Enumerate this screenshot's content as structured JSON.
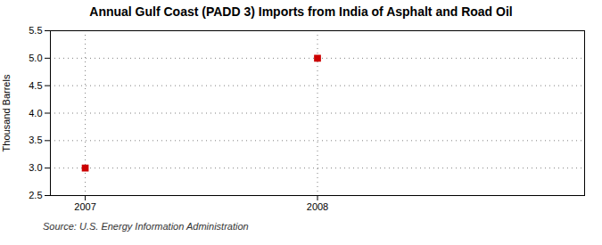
{
  "chart_data": {
    "type": "scatter",
    "title": "Annual Gulf Coast (PADD 3) Imports from India of Asphalt and Road Oil",
    "ylabel": "Thousand Barrels",
    "annotations": [
      "Source: U.S. Energy Information Administration"
    ],
    "x": [
      2007,
      2008
    ],
    "values": [
      3.0,
      5.0
    ],
    "color": "#cc0000",
    "marker": "square",
    "xlim": [
      2006.85,
      2009.15
    ],
    "ylim": [
      2.5,
      5.5
    ],
    "xticks": [
      2007,
      2008
    ],
    "yticks": [
      2.5,
      {
        "value": 3,
        "label": "3.0"
      },
      3.5,
      {
        "value": 4,
        "label": "4.0"
      },
      4.5,
      {
        "value": 5,
        "label": "5.0"
      },
      5.5
    ],
    "grid": true
  }
}
